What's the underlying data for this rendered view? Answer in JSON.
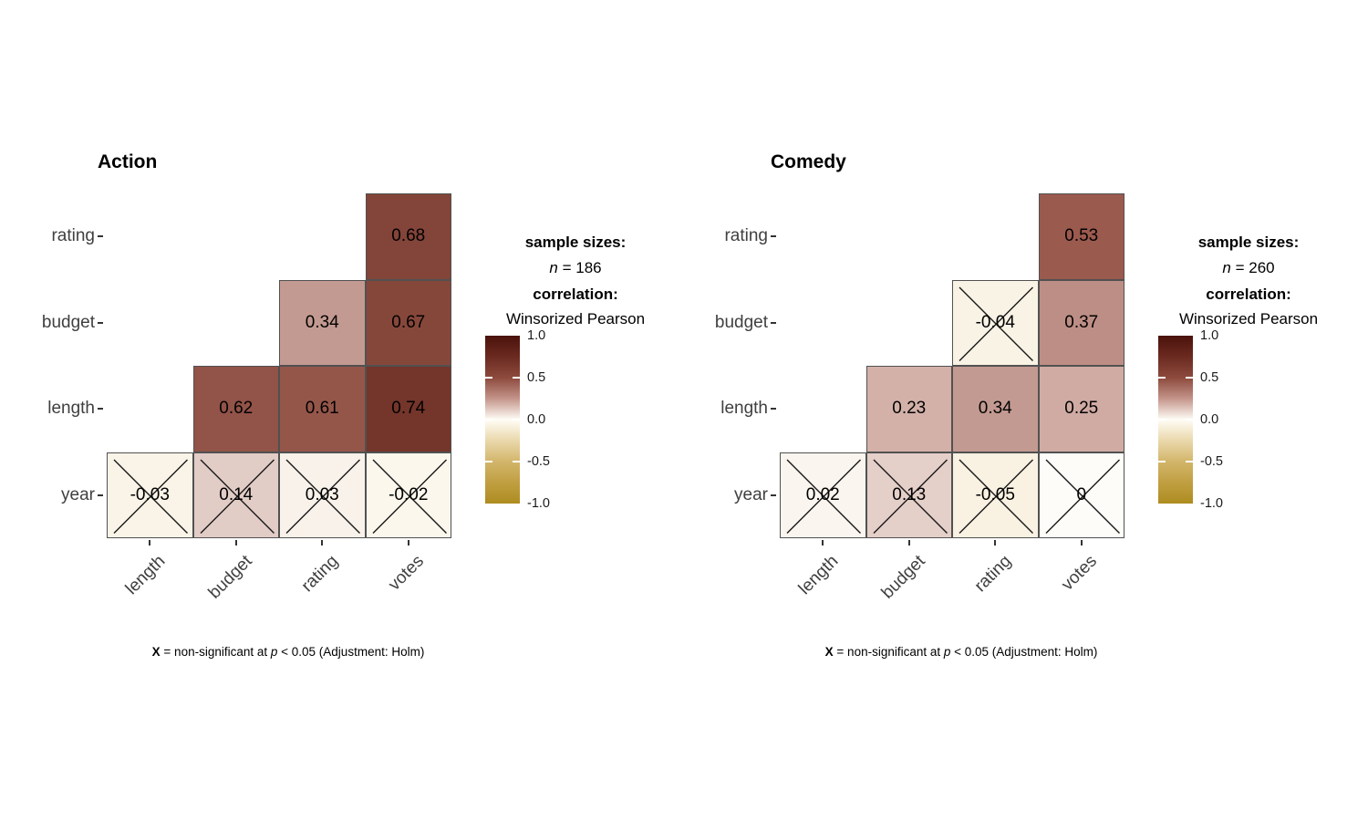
{
  "caption": {
    "segments": [
      {
        "text": "X",
        "bold": true,
        "italic": false
      },
      {
        "text": " = non-significant at ",
        "bold": false,
        "italic": false
      },
      {
        "text": "p",
        "bold": false,
        "italic": true
      },
      {
        "text": " < 0.05 (Adjustment: Holm)",
        "bold": false,
        "italic": false
      }
    ]
  },
  "colorscale": {
    "anchors": [
      [
        -1.0,
        "#ae8c20"
      ],
      [
        -0.75,
        "#c09f42"
      ],
      [
        -0.5,
        "#d2b66b"
      ],
      [
        -0.25,
        "#ead8ab"
      ],
      [
        -0.03,
        "#faf4e8"
      ],
      [
        0.0,
        "#fdfcf8"
      ],
      [
        0.03,
        "#f8f2ea"
      ],
      [
        0.14,
        "#e2ccc6"
      ],
      [
        0.25,
        "#d0aba3"
      ],
      [
        0.34,
        "#c39a91"
      ],
      [
        0.37,
        "#bd8e85"
      ],
      [
        0.53,
        "#9b5a4e"
      ],
      [
        0.61,
        "#95564a"
      ],
      [
        0.68,
        "#834439"
      ],
      [
        0.74,
        "#74352a"
      ],
      [
        1.0,
        "#451109"
      ]
    ],
    "bar_stops": [
      [
        1.0,
        "#4a120b"
      ],
      [
        0.75,
        "#6b2a20"
      ],
      [
        0.5,
        "#8d4a3d"
      ],
      [
        0.25,
        "#c4948a"
      ],
      [
        0.0,
        "#fffdf6"
      ],
      [
        -0.25,
        "#ead8ab"
      ],
      [
        -0.5,
        "#d2b66b"
      ],
      [
        -0.75,
        "#c09f42"
      ],
      [
        -1.0,
        "#ae8c20"
      ]
    ]
  },
  "chart_data": [
    {
      "type": "heatmap",
      "title": "Action",
      "x_categories": [
        "length",
        "budget",
        "rating",
        "votes"
      ],
      "y_categories": [
        "rating",
        "budget",
        "length",
        "year"
      ],
      "value_range": [
        -1,
        1
      ],
      "cells": [
        {
          "row": "rating",
          "col": "votes",
          "value": 0.68,
          "significant": true
        },
        {
          "row": "budget",
          "col": "rating",
          "value": 0.34,
          "significant": true
        },
        {
          "row": "budget",
          "col": "votes",
          "value": 0.67,
          "significant": true
        },
        {
          "row": "length",
          "col": "budget",
          "value": 0.62,
          "significant": true
        },
        {
          "row": "length",
          "col": "rating",
          "value": 0.61,
          "significant": true
        },
        {
          "row": "length",
          "col": "votes",
          "value": 0.74,
          "significant": true
        },
        {
          "row": "year",
          "col": "length",
          "value": -0.03,
          "significant": false
        },
        {
          "row": "year",
          "col": "budget",
          "value": 0.14,
          "significant": false
        },
        {
          "row": "year",
          "col": "rating",
          "value": 0.03,
          "significant": false
        },
        {
          "row": "year",
          "col": "votes",
          "value": -0.02,
          "significant": false
        }
      ],
      "legend": {
        "sample_sizes_label": "sample sizes:",
        "n_label": "n",
        "n_eq": " = ",
        "n_value": "186",
        "correlation_label": "correlation:",
        "method": "Winsorized Pearson",
        "colorbar_tick_labels": [
          "1.0",
          "0.5",
          "0.0",
          "-0.5",
          "-1.0"
        ],
        "colorbar_tick_values": [
          1,
          0.5,
          0,
          -0.5,
          -1
        ]
      }
    },
    {
      "type": "heatmap",
      "title": "Comedy",
      "x_categories": [
        "length",
        "budget",
        "rating",
        "votes"
      ],
      "y_categories": [
        "rating",
        "budget",
        "length",
        "year"
      ],
      "value_range": [
        -1,
        1
      ],
      "cells": [
        {
          "row": "rating",
          "col": "votes",
          "value": 0.53,
          "significant": true
        },
        {
          "row": "budget",
          "col": "rating",
          "value": -0.04,
          "significant": false
        },
        {
          "row": "budget",
          "col": "votes",
          "value": 0.37,
          "significant": true
        },
        {
          "row": "length",
          "col": "budget",
          "value": 0.23,
          "significant": true
        },
        {
          "row": "length",
          "col": "rating",
          "value": 0.34,
          "significant": true
        },
        {
          "row": "length",
          "col": "votes",
          "value": 0.25,
          "significant": true
        },
        {
          "row": "year",
          "col": "length",
          "value": 0.02,
          "significant": false
        },
        {
          "row": "year",
          "col": "budget",
          "value": 0.13,
          "significant": false
        },
        {
          "row": "year",
          "col": "rating",
          "value": -0.05,
          "significant": false
        },
        {
          "row": "year",
          "col": "votes",
          "value": 0,
          "significant": false
        }
      ],
      "legend": {
        "sample_sizes_label": "sample sizes:",
        "n_label": "n",
        "n_eq": " = ",
        "n_value": "260",
        "correlation_label": "correlation:",
        "method": "Winsorized Pearson",
        "colorbar_tick_labels": [
          "1.0",
          "0.5",
          "0.0",
          "-0.5",
          "-1.0"
        ],
        "colorbar_tick_values": [
          1,
          0.5,
          0,
          -0.5,
          -1
        ]
      }
    }
  ]
}
